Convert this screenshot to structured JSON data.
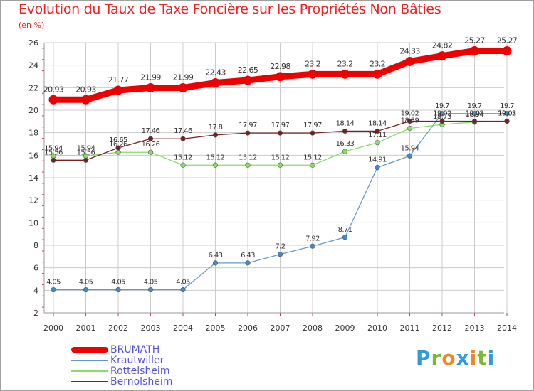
{
  "page": {
    "background": "#ffffff"
  },
  "chart_data": {
    "type": "line",
    "title": "Evolution du Taux de Taxe Foncière sur les Propriétés Non Bâties",
    "ylabel": "(en %)",
    "xlabel": "",
    "ylim": [
      2,
      26
    ],
    "yticks": [
      2,
      4,
      6,
      8,
      10,
      12,
      14,
      16,
      18,
      20,
      22,
      24,
      26
    ],
    "grid": true,
    "legend": "bottom-left",
    "x": [
      "2000",
      "2001",
      "2002",
      "2003",
      "2004",
      "2005",
      "2006",
      "2007",
      "2008",
      "2009",
      "2010",
      "2011",
      "2012",
      "2013",
      "2014"
    ],
    "series": [
      {
        "name": "BRUMATH",
        "color": "#ee0000",
        "values": [
          20.93,
          20.93,
          21.77,
          21.99,
          21.99,
          22.43,
          22.65,
          22.98,
          23.2,
          23.2,
          23.2,
          24.33,
          24.82,
          25.27,
          25.27
        ],
        "labels": [
          "20.93",
          "20.93",
          "21.77",
          "21.99",
          "21.99",
          "22.43",
          "22.65",
          "22.98",
          "23.2",
          "23.2",
          "23.2",
          "24.33",
          "24.82",
          "25.27",
          "25.27"
        ]
      },
      {
        "name": "Krautwiller",
        "color": "#6699cc",
        "values": [
          4.05,
          4.05,
          4.05,
          4.05,
          4.05,
          6.43,
          6.43,
          7.2,
          7.92,
          8.71,
          14.91,
          15.94,
          19.7,
          19.7,
          19.7
        ],
        "labels": [
          "4.05",
          "4.05",
          "4.05",
          "4.05",
          "4.05",
          "6.43",
          "6.43",
          "7.2",
          "7.92",
          "8.71",
          "14.91",
          "15.94",
          "19.7",
          "19.7",
          "19.7"
        ]
      },
      {
        "name": "Rottelsheim",
        "color": "#88dd66",
        "values": [
          15.94,
          15.94,
          16.26,
          16.26,
          15.12,
          15.12,
          15.12,
          15.12,
          15.12,
          16.33,
          17.11,
          18.39,
          18.73,
          18.94,
          19.03
        ],
        "labels": [
          "15.94",
          "15.94",
          "16.26",
          "16.26",
          "15.12",
          "15.12",
          "15.12",
          "15.12",
          "15.12",
          "16.33",
          "17.11",
          "18.39",
          "18.73",
          "18.94",
          "19.03"
        ]
      },
      {
        "name": "Bernolsheim",
        "color": "#772222",
        "values": [
          15.56,
          15.56,
          16.65,
          17.46,
          17.46,
          17.8,
          17.97,
          17.97,
          17.97,
          18.14,
          18.14,
          19.02,
          19.02,
          19.02,
          19.02
        ],
        "labels": [
          "15.56",
          "15.56",
          "16.65",
          "17.46",
          "17.46",
          "17.8",
          "17.97",
          "17.97",
          "17.97",
          "18.14",
          "18.14",
          "19.02",
          "19.02",
          "19.02",
          "19.02"
        ]
      }
    ]
  },
  "logo": {
    "letters": [
      "P",
      "r",
      "o",
      "x",
      "i",
      "t",
      "i"
    ]
  }
}
